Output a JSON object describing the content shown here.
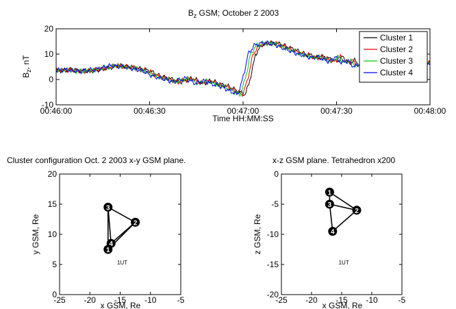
{
  "chart_data": [
    {
      "type": "line",
      "title_main": "B",
      "title_sub": "z",
      "title_rest": " GSM; October 2 2003",
      "xlabel": "Time HH:MM:SS",
      "ylabel_main": "B",
      "ylabel_sub": "z",
      "ylabel_rest": ", nT",
      "x_unit": "seconds after 00:46:00",
      "xlim": [
        0,
        120
      ],
      "ylim": [
        -10,
        20
      ],
      "xticks": [
        0,
        30,
        60,
        90,
        120
      ],
      "xtick_labels": [
        "00:46:00",
        "00:46:30",
        "00:47:00",
        "00:47:30",
        "00:48:00"
      ],
      "yticks": [
        -10,
        0,
        10,
        20
      ],
      "ytick_labels": [
        "-10",
        "0",
        "10",
        "20"
      ],
      "legend_position": "top-right",
      "series": [
        {
          "name": "Cluster 1",
          "color": "#000000",
          "shift": 0.0
        },
        {
          "name": "Cluster 2",
          "color": "#ff0000",
          "shift": -0.8
        },
        {
          "name": "Cluster 3",
          "color": "#00cc00",
          "shift": -1.6
        },
        {
          "name": "Cluster 4",
          "color": "#0000ff",
          "shift": -2.4
        }
      ],
      "base_profile": {
        "t": [
          0,
          5,
          10,
          15,
          20,
          25,
          27,
          30,
          33,
          36,
          40,
          44,
          47,
          50,
          53,
          56,
          58,
          60,
          60.5,
          61,
          62,
          63,
          64,
          66,
          69,
          72,
          75,
          78,
          80,
          82,
          84,
          86,
          88,
          90,
          92,
          94,
          96,
          98,
          100,
          102,
          104,
          106,
          108,
          110,
          112,
          114,
          116,
          118,
          120
        ],
        "b": [
          3.5,
          3.8,
          3.2,
          4.0,
          5.5,
          4.8,
          4.2,
          3.5,
          1.5,
          0.5,
          -1.0,
          0.5,
          -1.5,
          -0.5,
          -2.0,
          -3.0,
          -4.5,
          -5.5,
          -6.0,
          -5.0,
          -1.0,
          4.0,
          10.0,
          13.5,
          14.5,
          14.0,
          12.5,
          11.0,
          10.0,
          9.5,
          8.5,
          9.0,
          8.0,
          7.0,
          9.0,
          6.5,
          7.5,
          5.0,
          6.0,
          4.0,
          6.5,
          5.5,
          9.5,
          8.5,
          10.5,
          7.5,
          7.0,
          7.5,
          6.5
        ]
      }
    },
    {
      "type": "scatter",
      "title": "Cluster configuration Oct. 2 2003 x-y GSM plane.",
      "xlabel": "x GSM, Re",
      "ylabel": "y GSM, Re",
      "xlim": [
        -25,
        -5
      ],
      "ylim": [
        0,
        20
      ],
      "xticks": [
        -25,
        -20,
        -15,
        -10,
        -5
      ],
      "yticks": [
        0,
        5,
        10,
        15,
        20
      ],
      "annotation": {
        "text": "1UT",
        "x": -15.5,
        "y": 5
      },
      "points": [
        {
          "label": "1",
          "x": -17.0,
          "y": 7.5
        },
        {
          "label": "2",
          "x": -12.5,
          "y": 12.0
        },
        {
          "label": "3",
          "x": -17.0,
          "y": 14.5
        },
        {
          "label": "4",
          "x": -16.5,
          "y": 8.5
        }
      ],
      "edges": [
        [
          1,
          2
        ],
        [
          1,
          3
        ],
        [
          1,
          4
        ],
        [
          2,
          3
        ],
        [
          2,
          4
        ],
        [
          3,
          4
        ]
      ]
    },
    {
      "type": "scatter",
      "title": "x-z GSM plane. Tetrahedron x200",
      "xlabel": "x GSM, Re",
      "ylabel": "z GSM, Re",
      "xlim": [
        -25,
        -5
      ],
      "ylim": [
        -20,
        0
      ],
      "xticks": [
        -25,
        -20,
        -15,
        -10,
        -5
      ],
      "yticks": [
        -20,
        -15,
        -10,
        -5,
        0
      ],
      "annotation": {
        "text": "1UT",
        "x": -15.5,
        "y": -15
      },
      "points": [
        {
          "label": "1",
          "x": -17.0,
          "y": -3.0
        },
        {
          "label": "2",
          "x": -12.5,
          "y": -6.0
        },
        {
          "label": "3",
          "x": -17.0,
          "y": -5.0
        },
        {
          "label": "4",
          "x": -16.5,
          "y": -9.5
        }
      ],
      "edges": [
        [
          1,
          2
        ],
        [
          1,
          3
        ],
        [
          2,
          3
        ],
        [
          2,
          4
        ],
        [
          3,
          4
        ]
      ]
    }
  ]
}
